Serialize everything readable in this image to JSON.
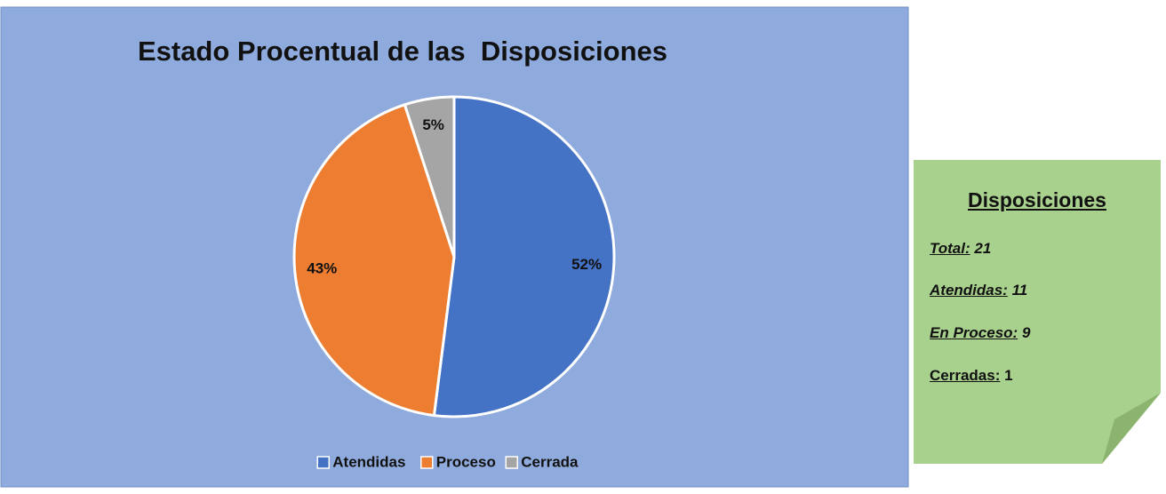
{
  "chart_data": {
    "type": "pie",
    "title": "Estado Procentual de las  Disposiciones",
    "categories": [
      "Atendidas",
      "Proceso",
      "Cerrada"
    ],
    "values": [
      52,
      43,
      5
    ],
    "value_labels": [
      "52%",
      "43%",
      "5%"
    ],
    "colors": [
      "#4472c4",
      "#ed7d31",
      "#a5a5a5"
    ],
    "legend": "bottom"
  },
  "note": {
    "title": "Disposiciones",
    "items": [
      {
        "label": "Total:",
        "value": 21
      },
      {
        "label": "Atendidas:",
        "value": 11
      },
      {
        "label": "En Proceso:",
        "value": 9
      },
      {
        "label": "Cerradas:",
        "value": 1
      }
    ]
  }
}
